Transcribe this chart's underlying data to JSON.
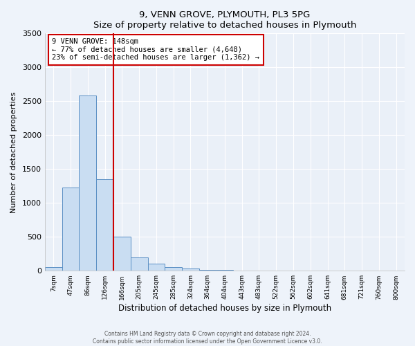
{
  "title": "9, VENN GROVE, PLYMOUTH, PL3 5PG",
  "subtitle": "Size of property relative to detached houses in Plymouth",
  "xlabel": "Distribution of detached houses by size in Plymouth",
  "ylabel": "Number of detached properties",
  "bar_labels": [
    "7sqm",
    "47sqm",
    "86sqm",
    "126sqm",
    "166sqm",
    "205sqm",
    "245sqm",
    "285sqm",
    "324sqm",
    "364sqm",
    "404sqm",
    "443sqm",
    "483sqm",
    "522sqm",
    "562sqm",
    "602sqm",
    "641sqm",
    "681sqm",
    "721sqm",
    "760sqm",
    "800sqm"
  ],
  "bar_values": [
    50,
    1230,
    2590,
    1350,
    500,
    200,
    110,
    55,
    30,
    15,
    10,
    5,
    5,
    0,
    0,
    0,
    0,
    0,
    0,
    0,
    0
  ],
  "bar_color": "#c9ddf2",
  "bar_edge_color": "#5a8fc4",
  "vline_color": "#cc0000",
  "annotation_title": "9 VENN GROVE: 148sqm",
  "annotation_line1": "← 77% of detached houses are smaller (4,648)",
  "annotation_line2": "23% of semi-detached houses are larger (1,362) →",
  "annotation_box_edge": "#cc0000",
  "ylim": [
    0,
    3500
  ],
  "yticks": [
    0,
    500,
    1000,
    1500,
    2000,
    2500,
    3000,
    3500
  ],
  "bg_color": "#eef3fa",
  "plot_bg_color": "#eaf0f8",
  "grid_color": "#ffffff",
  "footer1": "Contains HM Land Registry data © Crown copyright and database right 2024.",
  "footer2": "Contains public sector information licensed under the Open Government Licence v3.0."
}
